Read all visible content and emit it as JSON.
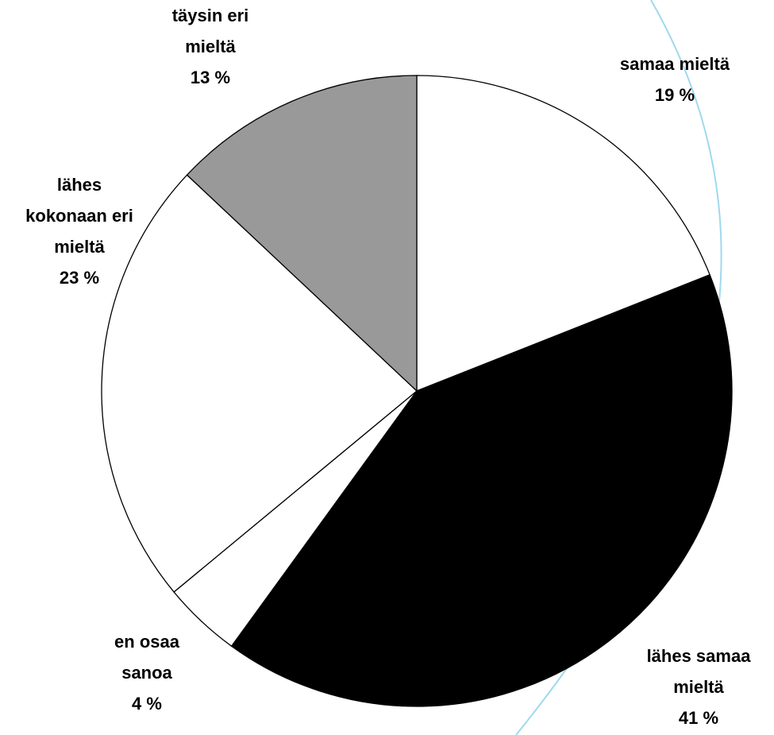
{
  "chart_data": {
    "type": "pie",
    "categories": [
      "samaa mieltä",
      "lähes samaa mieltä",
      "en osaa sanoa",
      "lähes kokonaan eri mieltä",
      "täysin eri mieltä"
    ],
    "values": [
      19,
      41,
      4,
      23,
      13
    ],
    "value_labels": [
      "19 %",
      "41 %",
      "4 %",
      "23 %",
      "13 %"
    ],
    "colors": [
      "#ffffff",
      "#000000",
      "#ffffff",
      "#ffffff",
      "#999999"
    ]
  }
}
